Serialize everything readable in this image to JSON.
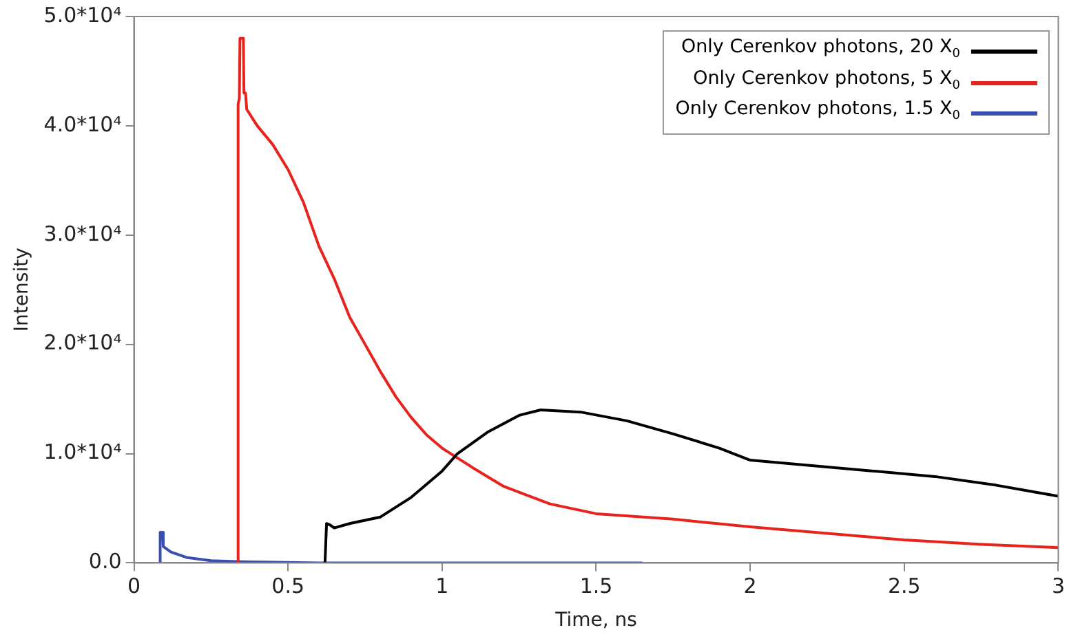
{
  "chart_data": {
    "type": "line",
    "xlabel": "Time, ns",
    "ylabel": "Intensity",
    "xlim": [
      0,
      3
    ],
    "ylim": [
      0,
      50000
    ],
    "xticks": [
      0,
      0.5,
      1,
      1.5,
      2,
      2.5,
      3
    ],
    "yticks": [
      {
        "value": 0,
        "label": "0.0"
      },
      {
        "value": 10000,
        "label": "1.0*10⁴"
      },
      {
        "value": 20000,
        "label": "2.0*10⁴"
      },
      {
        "value": 30000,
        "label": "3.0*10⁴"
      },
      {
        "value": 40000,
        "label": "4.0*10⁴"
      },
      {
        "value": 50000,
        "label": "5.0*10⁴"
      }
    ],
    "grid": false,
    "legend": "top right",
    "marker": "none",
    "line_style": "solid",
    "series": [
      {
        "name": "Only Cerenkov photons, 20 X$_{0}$",
        "color": "#000000",
        "x": [
          0.62,
          0.625,
          0.635,
          0.65,
          0.7,
          0.8,
          0.9,
          1.0,
          1.05,
          1.15,
          1.25,
          1.32,
          1.45,
          1.6,
          1.75,
          1.9,
          2.0,
          2.2,
          2.4,
          2.6,
          2.8,
          3.0
        ],
        "values": [
          0,
          3600,
          3500,
          3200,
          3600,
          4200,
          6000,
          8400,
          10000,
          12000,
          13500,
          14000,
          13800,
          13000,
          11800,
          10500,
          9400,
          8900,
          8400,
          7900,
          7100,
          6100
        ]
      },
      {
        "name": "Only Cerenkov photons, 5 X$_{0}$",
        "color": "#e8221c",
        "x": [
          0.338,
          0.338,
          0.342,
          0.344,
          0.355,
          0.357,
          0.362,
          0.366,
          0.4,
          0.45,
          0.5,
          0.55,
          0.6,
          0.65,
          0.7,
          0.75,
          0.8,
          0.85,
          0.9,
          0.95,
          1.0,
          1.05,
          1.1,
          1.2,
          1.35,
          1.5,
          1.75,
          2.0,
          2.25,
          2.5,
          2.75,
          3.0
        ],
        "values": [
          0,
          42000,
          42500,
          48000,
          48000,
          43000,
          43000,
          41500,
          40000,
          38300,
          36000,
          33000,
          29000,
          26000,
          22500,
          20000,
          17500,
          15200,
          13300,
          11700,
          10500,
          9600,
          8700,
          7000,
          5400,
          4500,
          4000,
          3300,
          2700,
          2100,
          1700,
          1400
        ]
      },
      {
        "name": "Only Cerenkov photons, 1.5 X$_{0}$",
        "color": "#3a4fb0",
        "x": [
          0.085,
          0.085,
          0.093,
          0.095,
          0.12,
          0.17,
          0.25,
          0.35,
          0.6,
          1.0,
          1.65
        ],
        "values": [
          0,
          2800,
          2800,
          1500,
          1000,
          500,
          200,
          100,
          0,
          0,
          0
        ]
      }
    ]
  }
}
